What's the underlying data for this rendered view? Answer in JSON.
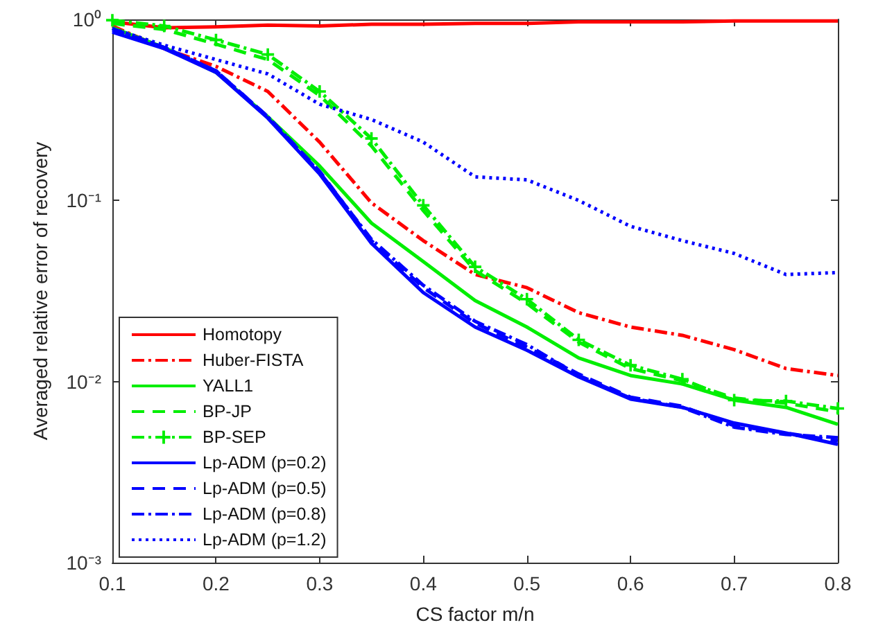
{
  "chart_data": {
    "type": "line",
    "xlabel": "CS factor m/n",
    "ylabel": "Averaged relative error of recovery",
    "x": [
      0.1,
      0.15,
      0.2,
      0.25,
      0.3,
      0.35,
      0.4,
      0.45,
      0.5,
      0.55,
      0.6,
      0.65,
      0.7,
      0.75,
      0.8
    ],
    "xlim": [
      0.1,
      0.8
    ],
    "xticks": [
      0.1,
      0.2,
      0.3,
      0.4,
      0.5,
      0.6,
      0.7,
      0.8
    ],
    "ylim": [
      0.001,
      1
    ],
    "yticks": [
      {
        "value": 0.001,
        "label": "10⁻³"
      },
      {
        "value": 0.01,
        "label": "10⁻²"
      },
      {
        "value": 0.1,
        "label": "10⁻¹"
      },
      {
        "value": 1,
        "label": "10⁰"
      }
    ],
    "log": "y",
    "grid": false,
    "legend": "bottom left",
    "marker": "none",
    "series": [
      {
        "name": "Homotopy",
        "color": "#ff0000",
        "line_style": "solid",
        "values": [
          0.97,
          0.9,
          0.91,
          0.93,
          0.92,
          0.94,
          0.94,
          0.95,
          0.95,
          0.97,
          0.97,
          0.97,
          0.98,
          0.98,
          0.98
        ]
      },
      {
        "name": "Huber-FISTA",
        "color": "#ff0000",
        "line_style": "dashdot",
        "values": [
          0.92,
          0.69,
          0.55,
          0.4,
          0.21,
          0.097,
          0.06,
          0.039,
          0.033,
          0.024,
          0.02,
          0.018,
          0.015,
          0.0118,
          0.0108
        ]
      },
      {
        "name": "YALL1",
        "color": "#00ee00",
        "line_style": "solid",
        "values": [
          0.9,
          0.7,
          0.51,
          0.29,
          0.155,
          0.075,
          0.046,
          0.028,
          0.02,
          0.0135,
          0.0108,
          0.0097,
          0.0079,
          0.0072,
          0.0058
        ]
      },
      {
        "name": "BP-JP",
        "color": "#00ee00",
        "line_style": "dashed",
        "values": [
          0.95,
          0.88,
          0.73,
          0.6,
          0.38,
          0.2,
          0.088,
          0.041,
          0.027,
          0.0165,
          0.0118,
          0.0101,
          0.0081,
          0.0076,
          0.0068
        ]
      },
      {
        "name": "BP-SEP",
        "color": "#00ee00",
        "line_style": "dashdot",
        "marker": "cross",
        "values": [
          0.99,
          0.92,
          0.77,
          0.64,
          0.4,
          0.22,
          0.094,
          0.043,
          0.0285,
          0.017,
          0.0123,
          0.0103,
          0.0079,
          0.0078,
          0.0071
        ]
      },
      {
        "name": "Lp-ADM (p=0.2)",
        "color": "#0000ff",
        "line_style": "solid",
        "values": [
          0.85,
          0.69,
          0.51,
          0.285,
          0.14,
          0.058,
          0.031,
          0.02,
          0.0149,
          0.0106,
          0.008,
          0.0072,
          0.0059,
          0.0052,
          0.0045
        ]
      },
      {
        "name": "Lp-ADM (p=0.5)",
        "color": "#0000ff",
        "line_style": "dashed",
        "values": [
          0.87,
          0.7,
          0.52,
          0.29,
          0.145,
          0.06,
          0.033,
          0.021,
          0.0155,
          0.011,
          0.0082,
          0.0073,
          0.0057,
          0.0052,
          0.0047
        ]
      },
      {
        "name": "Lp-ADM (p=0.8)",
        "color": "#0000ff",
        "line_style": "dashdot",
        "values": [
          0.89,
          0.7,
          0.52,
          0.29,
          0.143,
          0.061,
          0.034,
          0.0215,
          0.016,
          0.0108,
          0.0081,
          0.0072,
          0.0056,
          0.0051,
          0.0049
        ]
      },
      {
        "name": "Lp-ADM (p=1.2)",
        "color": "#0000ff",
        "line_style": "dotted",
        "values": [
          0.89,
          0.72,
          0.6,
          0.5,
          0.34,
          0.28,
          0.21,
          0.135,
          0.13,
          0.1,
          0.072,
          0.06,
          0.051,
          0.039,
          0.04
        ]
      }
    ]
  }
}
